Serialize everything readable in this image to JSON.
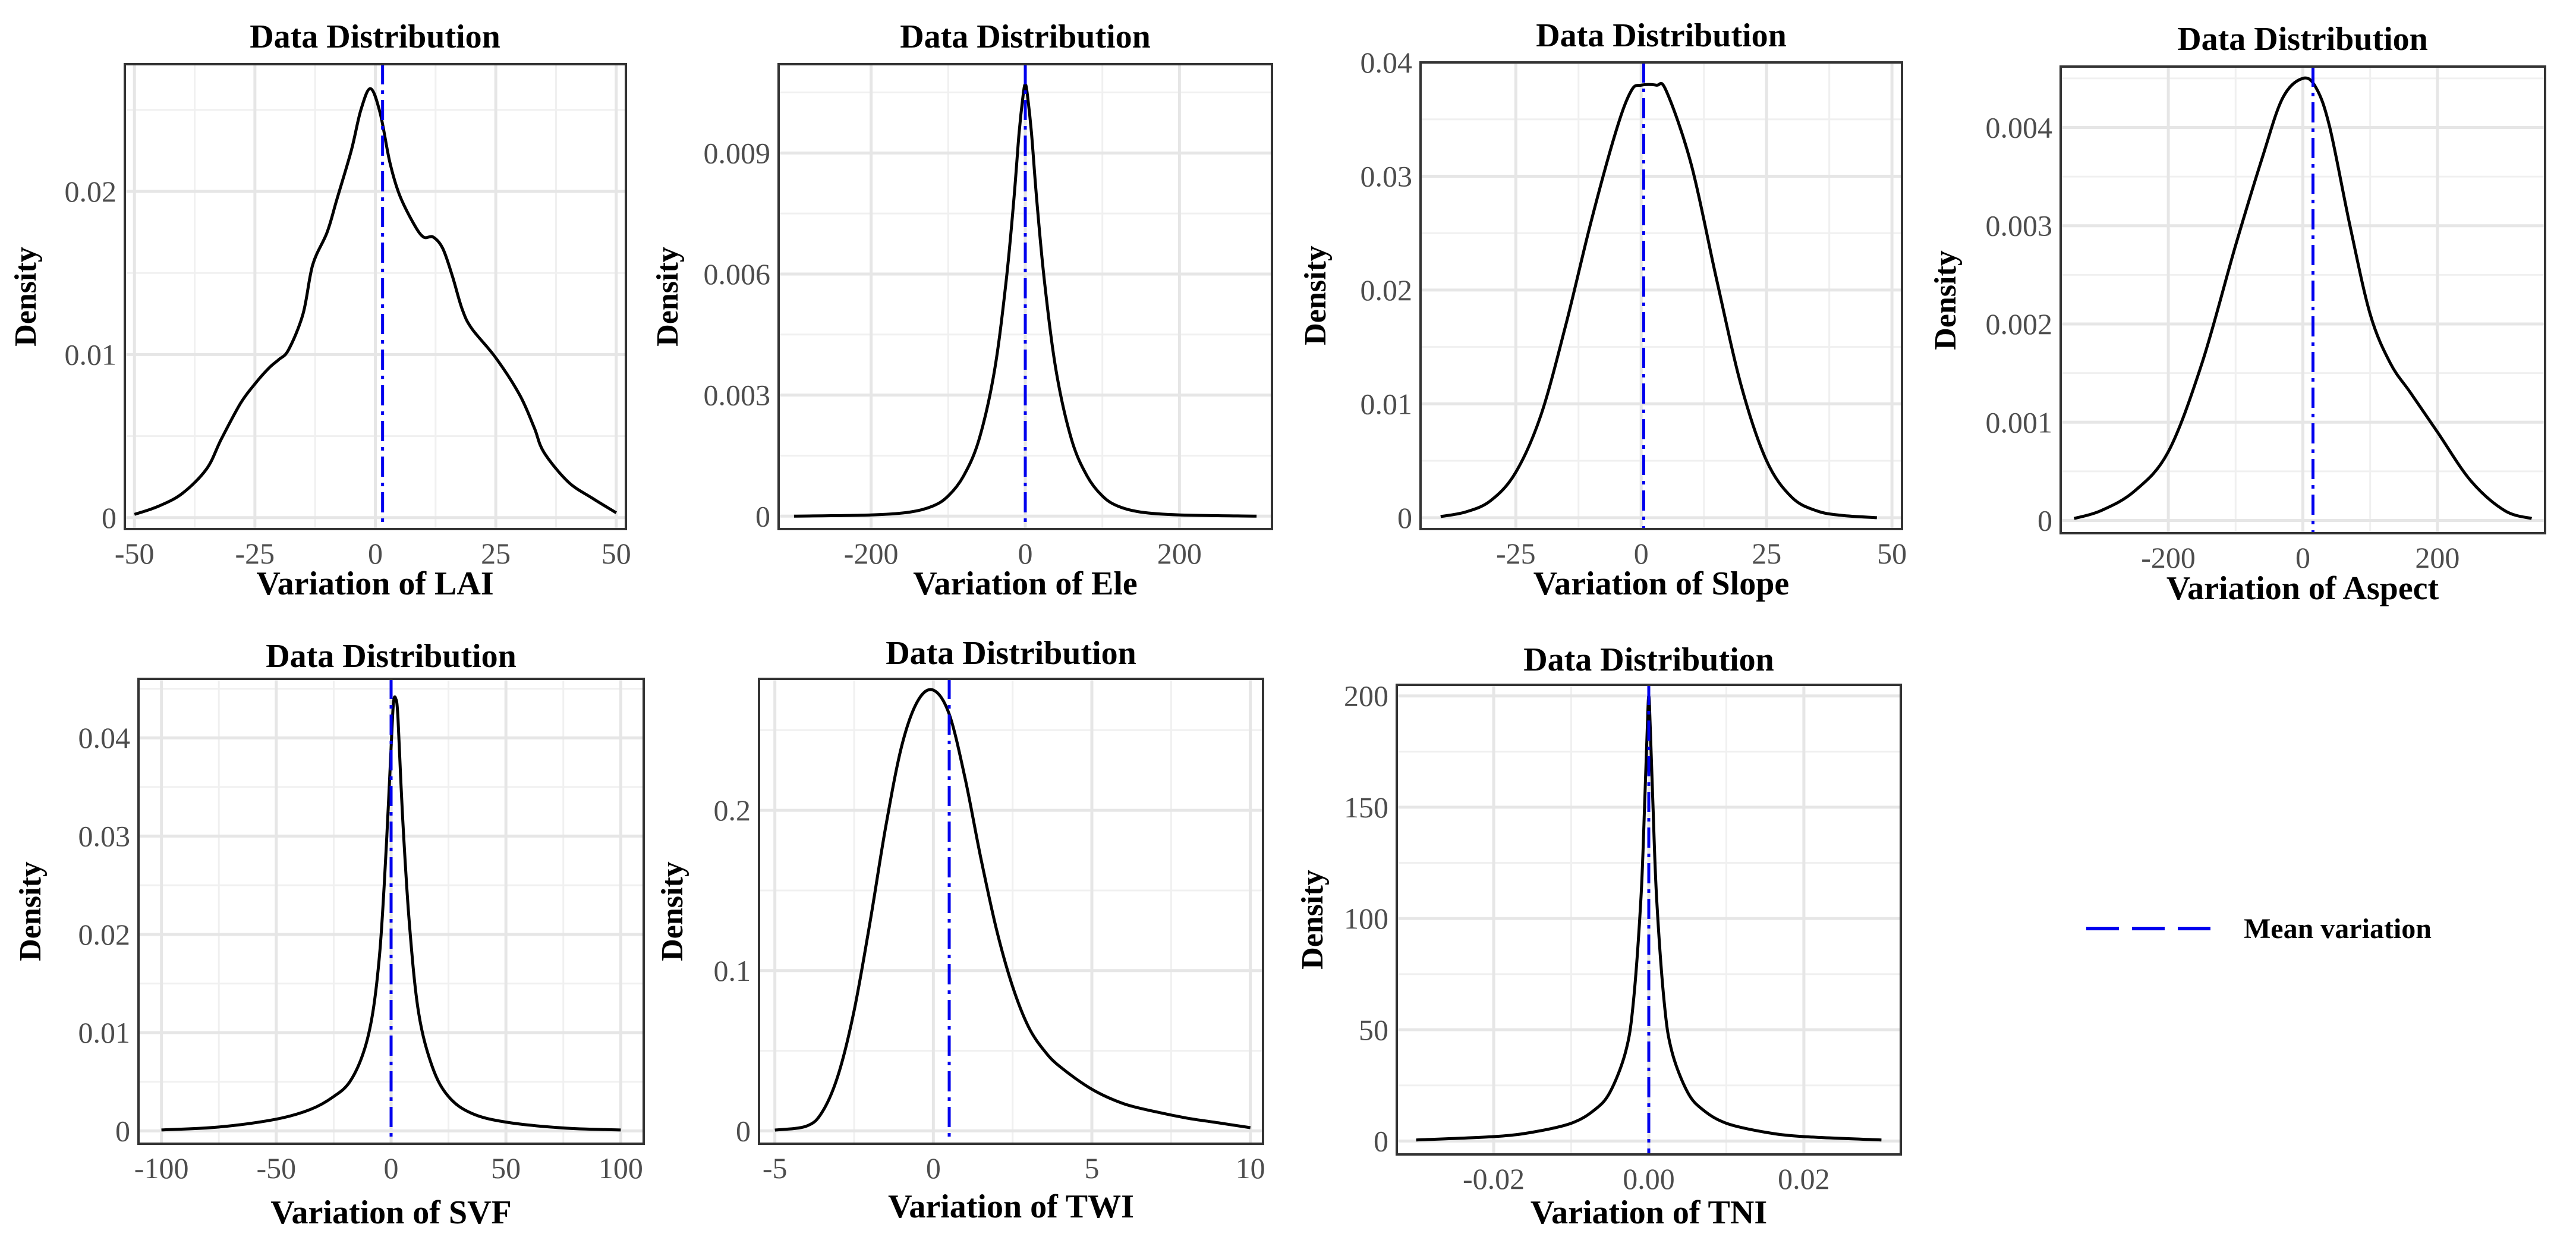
{
  "legend": {
    "label": "Mean variation",
    "color": "#0000ee"
  },
  "chart_data": [
    {
      "type": "line",
      "title": "Data Distribution",
      "xlabel": "Variation of LAI",
      "ylabel": "Density",
      "xlim": [
        -52,
        52
      ],
      "ylim": [
        -0.0007,
        0.0278
      ],
      "xticks": [
        -50,
        -25,
        0,
        25,
        50
      ],
      "xtick_labels": [
        "-50",
        "-25",
        "0",
        "25",
        "50"
      ],
      "yticks": [
        0,
        0.01,
        0.02
      ],
      "ytick_labels": [
        "0",
        "0.01",
        "0.02"
      ],
      "mean": 1.5,
      "series": [
        {
          "name": "density",
          "color": "#000000",
          "x": [
            -50,
            -45,
            -40,
            -35,
            -32,
            -28,
            -25,
            -22,
            -20,
            -18,
            -15,
            -13,
            -10,
            -8,
            -5,
            -3,
            -1,
            1,
            3,
            5,
            8,
            10,
            12,
            14,
            16,
            18,
            20,
            25,
            30,
            33,
            35,
            40,
            45,
            50
          ],
          "y": [
            0.0002,
            0.0007,
            0.0015,
            0.003,
            0.0048,
            0.007,
            0.0082,
            0.0092,
            0.0097,
            0.0103,
            0.0125,
            0.0155,
            0.0175,
            0.0195,
            0.0225,
            0.025,
            0.0263,
            0.0248,
            0.0218,
            0.0198,
            0.018,
            0.0172,
            0.0172,
            0.0165,
            0.0148,
            0.0128,
            0.0116,
            0.0098,
            0.0075,
            0.0055,
            0.004,
            0.0022,
            0.0012,
            0.0003
          ]
        }
      ]
    },
    {
      "type": "line",
      "title": "Data Distribution",
      "xlabel": "Variation of Ele",
      "ylabel": "Density",
      "xlim": [
        -320,
        320
      ],
      "ylim": [
        -0.00032,
        0.0112
      ],
      "xticks": [
        -200,
        0,
        200
      ],
      "xtick_labels": [
        "-200",
        "0",
        "200"
      ],
      "yticks": [
        0,
        0.003,
        0.006,
        0.009
      ],
      "ytick_labels": [
        "0",
        "0.003",
        "0.006",
        "0.009"
      ],
      "mean": 0,
      "series": [
        {
          "name": "density",
          "color": "#000000",
          "x": [
            -300,
            -200,
            -150,
            -120,
            -100,
            -80,
            -60,
            -40,
            -25,
            -15,
            -8,
            -3,
            0,
            3,
            8,
            15,
            25,
            40,
            60,
            80,
            100,
            120,
            150,
            200,
            300
          ],
          "y": [
            0,
            3e-05,
            0.0001,
            0.00025,
            0.0005,
            0.001,
            0.0019,
            0.0036,
            0.0058,
            0.0078,
            0.0095,
            0.0104,
            0.0107,
            0.0104,
            0.0095,
            0.0078,
            0.0058,
            0.0036,
            0.0019,
            0.001,
            0.0005,
            0.00025,
            0.0001,
            3e-05,
            0
          ]
        }
      ]
    },
    {
      "type": "line",
      "title": "Data Distribution",
      "xlabel": "Variation of Slope",
      "ylabel": "Density",
      "xlim": [
        -44,
        52
      ],
      "ylim": [
        -0.001,
        0.04
      ],
      "xticks": [
        -25,
        0,
        25,
        50
      ],
      "xtick_labels": [
        "-25",
        "0",
        "25",
        "50"
      ],
      "yticks": [
        0,
        0.01,
        0.02,
        0.03,
        0.04
      ],
      "ytick_labels": [
        "0",
        "0.01",
        "0.02",
        "0.03",
        "0.04"
      ],
      "mean": 0.5,
      "series": [
        {
          "name": "density",
          "color": "#000000",
          "x": [
            -40,
            -35,
            -30,
            -25,
            -20,
            -15,
            -10,
            -5,
            -2,
            0,
            3,
            5,
            10,
            15,
            20,
            25,
            30,
            35,
            40,
            47
          ],
          "y": [
            0.0001,
            0.0005,
            0.0015,
            0.004,
            0.009,
            0.017,
            0.026,
            0.034,
            0.0375,
            0.038,
            0.038,
            0.0375,
            0.031,
            0.021,
            0.0115,
            0.005,
            0.0018,
            0.0006,
            0.0002,
            0
          ]
        }
      ]
    },
    {
      "type": "line",
      "title": "Data Distribution",
      "xlabel": "Variation of Aspect",
      "ylabel": "Density",
      "xlim": [
        -360,
        360
      ],
      "ylim": [
        -0.00013,
        0.00462
      ],
      "xticks": [
        -200,
        0,
        200
      ],
      "xtick_labels": [
        "-200",
        "0",
        "200"
      ],
      "yticks": [
        0,
        0.001,
        0.002,
        0.003,
        0.004
      ],
      "ytick_labels": [
        "0",
        "0.001",
        "0.002",
        "0.003",
        "0.004"
      ],
      "mean": 15,
      "series": [
        {
          "name": "density",
          "color": "#000000",
          "x": [
            -340,
            -300,
            -250,
            -200,
            -150,
            -100,
            -60,
            -30,
            0,
            20,
            40,
            70,
            100,
            130,
            160,
            200,
            250,
            300,
            340
          ],
          "y": [
            2e-05,
            0.0001,
            0.0003,
            0.0007,
            0.0016,
            0.0028,
            0.0037,
            0.0043,
            0.0045,
            0.0044,
            0.004,
            0.003,
            0.0021,
            0.0016,
            0.0013,
            0.0009,
            0.0004,
            0.0001,
            2e-05
          ]
        }
      ]
    },
    {
      "type": "line",
      "title": "Data Distribution",
      "xlabel": "Variation of SVF",
      "ylabel": "Density",
      "xlim": [
        -110,
        110
      ],
      "ylim": [
        -0.0013,
        0.046
      ],
      "xticks": [
        -100,
        -50,
        0,
        50,
        100
      ],
      "xtick_labels": [
        "-100",
        "-50",
        "0",
        "50",
        "100"
      ],
      "yticks": [
        0,
        0.01,
        0.02,
        0.03,
        0.04
      ],
      "ytick_labels": [
        "0",
        "0.01",
        "0.02",
        "0.03",
        "0.04"
      ],
      "mean": 0,
      "series": [
        {
          "name": "density",
          "color": "#000000",
          "x": [
            -100,
            -75,
            -50,
            -35,
            -25,
            -18,
            -12,
            -8,
            -5,
            -3,
            -1,
            0,
            1,
            2,
            3,
            5,
            8,
            12,
            18,
            25,
            35,
            50,
            75,
            100
          ],
          "y": [
            0.0001,
            0.0004,
            0.0012,
            0.0022,
            0.0035,
            0.005,
            0.008,
            0.012,
            0.018,
            0.025,
            0.034,
            0.039,
            0.0435,
            0.044,
            0.042,
            0.032,
            0.021,
            0.012,
            0.0065,
            0.0035,
            0.0018,
            0.0009,
            0.0003,
            0.0001
          ]
        }
      ]
    },
    {
      "type": "line",
      "title": "Data Distribution",
      "xlabel": "Variation of TWI",
      "ylabel": "Density",
      "xlim": [
        -5.5,
        10.4
      ],
      "ylim": [
        -0.008,
        0.282
      ],
      "xticks": [
        -5,
        0,
        5,
        10
      ],
      "xtick_labels": [
        "-5",
        "0",
        "5",
        "10"
      ],
      "yticks": [
        0,
        0.1,
        0.2
      ],
      "ytick_labels": [
        "0",
        "0.1",
        "0.2"
      ],
      "mean": 0.5,
      "series": [
        {
          "name": "density",
          "color": "#000000",
          "x": [
            -5,
            -4,
            -3.5,
            -3,
            -2.5,
            -2,
            -1.5,
            -1,
            -0.5,
            0,
            0.5,
            1,
            1.5,
            2,
            2.5,
            3,
            3.5,
            4,
            5,
            6,
            7,
            8,
            9,
            10
          ],
          "y": [
            0.0005,
            0.003,
            0.012,
            0.035,
            0.075,
            0.13,
            0.19,
            0.24,
            0.268,
            0.275,
            0.26,
            0.22,
            0.17,
            0.125,
            0.09,
            0.065,
            0.05,
            0.04,
            0.026,
            0.017,
            0.012,
            0.008,
            0.005,
            0.002
          ]
        }
      ]
    },
    {
      "type": "line",
      "title": "Data Distribution",
      "xlabel": "Variation of TNI",
      "ylabel": "Density",
      "xlim": [
        -0.0325,
        0.0325
      ],
      "ylim": [
        -6,
        205
      ],
      "xticks": [
        -0.02,
        0,
        0.02
      ],
      "xtick_labels": [
        "-0.02",
        "0.00",
        "0.02"
      ],
      "yticks": [
        0,
        50,
        100,
        150,
        200
      ],
      "ytick_labels": [
        "0",
        "50",
        "100",
        "150",
        "200"
      ],
      "mean": 0,
      "series": [
        {
          "name": "density",
          "color": "#000000",
          "x": [
            -0.03,
            -0.02,
            -0.015,
            -0.01,
            -0.007,
            -0.005,
            -0.003,
            -0.002,
            -0.001,
            -0.0005,
            -0.0002,
            0,
            0.0002,
            0.0005,
            0.001,
            0.002,
            0.003,
            0.005,
            0.007,
            0.01,
            0.015,
            0.02,
            0.03
          ],
          "y": [
            0.5,
            2,
            4,
            8,
            14,
            22,
            40,
            62,
            110,
            155,
            185,
            200,
            185,
            155,
            110,
            62,
            40,
            22,
            14,
            8,
            4,
            2,
            0.5
          ]
        }
      ]
    }
  ]
}
